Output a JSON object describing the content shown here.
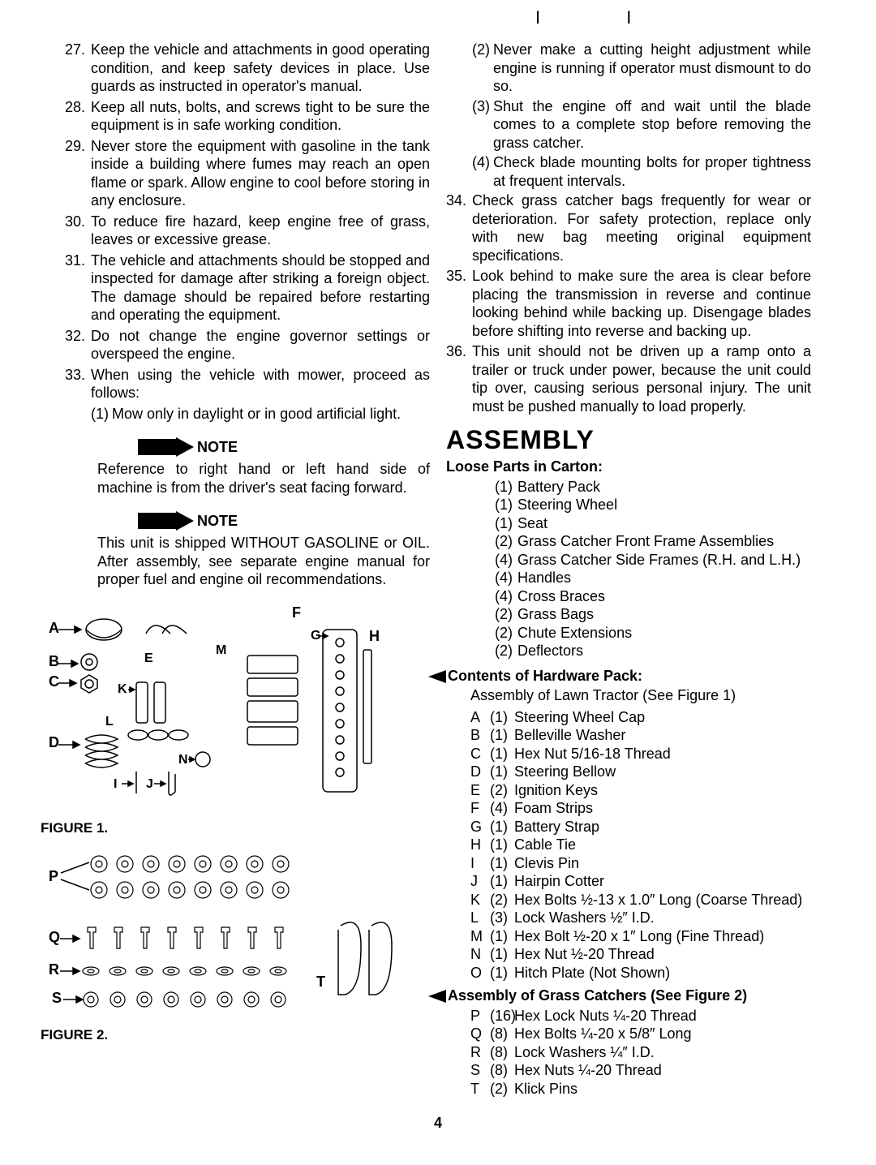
{
  "leftList": [
    {
      "n": "27.",
      "t": "Keep the vehicle and attachments in good operating condition, and keep safety devices in place. Use guards as instructed in operator's manual."
    },
    {
      "n": "28.",
      "t": "Keep all nuts, bolts, and screws tight to be sure the equipment is in safe working condition."
    },
    {
      "n": "29.",
      "t": "Never store the equipment with gasoline in the tank inside a building where fumes may reach an open flame or spark. Allow engine to cool before storing in any enclosure."
    },
    {
      "n": "30.",
      "t": "To reduce fire hazard, keep engine free of grass, leaves or excessive grease."
    },
    {
      "n": "31.",
      "t": "The vehicle and attachments should be stopped and inspected for damage after striking a foreign object. The damage should be repaired before restarting and operating the equipment."
    },
    {
      "n": "32.",
      "t": "Do not change the engine governor settings or overspeed the engine."
    },
    {
      "n": "33.",
      "t": "When using the vehicle with mower, proceed as follows:"
    }
  ],
  "leftSub33_1": {
    "n": "(1)",
    "t": "Mow only in daylight or in good artificial light."
  },
  "note1": {
    "label": "NOTE",
    "text": "Reference to right hand or left hand side of machine is from the driver's seat facing forward."
  },
  "note2": {
    "label": "NOTE",
    "text": "This unit is shipped WITHOUT GASOLINE or OIL. After assembly, see separate engine manual for proper fuel and engine oil recommendations."
  },
  "fig1": "FIGURE 1.",
  "fig2": "FIGURE 2.",
  "rightSub": [
    {
      "n": "(2)",
      "t": "Never make a cutting height adjustment while engine is running if operator must dismount to do so."
    },
    {
      "n": "(3)",
      "t": "Shut the engine off and wait until the blade comes to a complete stop before removing the grass catcher."
    },
    {
      "n": "(4)",
      "t": "Check blade mounting bolts for proper tightness at frequent intervals."
    }
  ],
  "rightList": [
    {
      "n": "34.",
      "t": "Check grass catcher bags frequently for wear or deterioration. For safety protection, replace only with new bag meeting original equipment specifications."
    },
    {
      "n": "35.",
      "t": "Look behind to make sure the area is clear before placing the transmission in reverse and continue looking behind while backing up. Disengage blades before shifting into reverse and backing up."
    },
    {
      "n": "36.",
      "t": "This unit should not be driven up a ramp onto a trailer or truck under power, because the unit could tip over, causing serious personal injury. The unit must be pushed manually to load properly."
    }
  ],
  "assembly_title": "ASSEMBLY",
  "loose_head": "Loose Parts in Carton:",
  "loose": [
    {
      "q": "(1)",
      "t": "Battery Pack"
    },
    {
      "q": "(1)",
      "t": "Steering Wheel"
    },
    {
      "q": "(1)",
      "t": "Seat"
    },
    {
      "q": "(2)",
      "t": "Grass Catcher Front Frame Assemblies"
    },
    {
      "q": "(4)",
      "t": "Grass Catcher Side Frames (R.H. and L.H.)"
    },
    {
      "q": "(4)",
      "t": "Handles"
    },
    {
      "q": "(4)",
      "t": "Cross Braces"
    },
    {
      "q": "(2)",
      "t": "Grass Bags"
    },
    {
      "q": "(2)",
      "t": "Chute Extensions"
    },
    {
      "q": "(2)",
      "t": "Deflectors"
    }
  ],
  "hw_head": "Contents of Hardware Pack:",
  "hw_sub": "Assembly of Lawn Tractor (See Figure 1)",
  "hw": [
    {
      "l": "A",
      "q": "(1)",
      "t": "Steering Wheel Cap"
    },
    {
      "l": "B",
      "q": "(1)",
      "t": "Belleville Washer"
    },
    {
      "l": "C",
      "q": "(1)",
      "t": "Hex Nut 5/16-18 Thread"
    },
    {
      "l": "D",
      "q": "(1)",
      "t": "Steering Bellow"
    },
    {
      "l": "E",
      "q": "(2)",
      "t": "Ignition Keys"
    },
    {
      "l": "F",
      "q": "(4)",
      "t": "Foam Strips"
    },
    {
      "l": "G",
      "q": "(1)",
      "t": "Battery Strap"
    },
    {
      "l": "H",
      "q": "(1)",
      "t": "Cable Tie"
    },
    {
      "l": "I",
      "q": "(1)",
      "t": "Clevis Pin"
    },
    {
      "l": "J",
      "q": "(1)",
      "t": "Hairpin Cotter"
    },
    {
      "l": "K",
      "q": "(2)",
      "t": "Hex Bolts ½-13 x 1.0″ Long (Coarse Thread)"
    },
    {
      "l": "L",
      "q": "(3)",
      "t": "Lock Washers ½″ I.D."
    },
    {
      "l": "M",
      "q": "(1)",
      "t": "Hex Bolt ½-20 x 1″ Long (Fine Thread)"
    },
    {
      "l": "N",
      "q": "(1)",
      "t": "Hex Nut ½-20 Thread"
    },
    {
      "l": "O",
      "q": "(1)",
      "t": "Hitch Plate (Not Shown)"
    }
  ],
  "gc_head": "Assembly of Grass Catchers (See Figure 2)",
  "gc": [
    {
      "l": "P",
      "q": "(16)",
      "t": "Hex Lock Nuts ¼-20 Thread"
    },
    {
      "l": "Q",
      "q": "(8)",
      "t": "Hex Bolts ¼-20 x 5/8″ Long"
    },
    {
      "l": "R",
      "q": "(8)",
      "t": "Lock Washers ¼″ I.D."
    },
    {
      "l": "S",
      "q": "(8)",
      "t": "Hex Nuts ¼-20 Thread"
    },
    {
      "l": "T",
      "q": "(2)",
      "t": "Klick Pins"
    }
  ],
  "page": "4"
}
